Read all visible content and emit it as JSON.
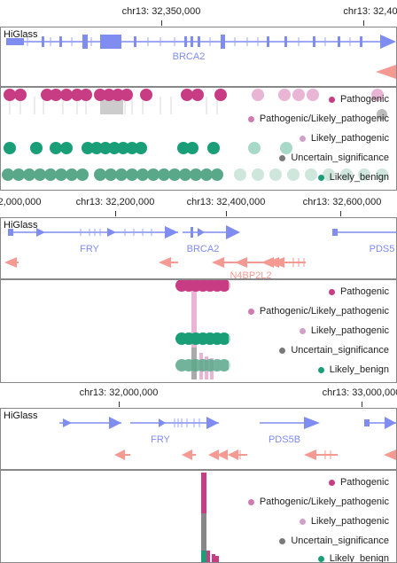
{
  "app_label": "HiGlass",
  "legend_items": [
    {
      "label": "Pathogenic",
      "color": "#c83c84"
    },
    {
      "label": "Pathogenic/Likely_pathogenic",
      "color": "#d07ab0"
    },
    {
      "label": "Likely_pathogenic",
      "color": "#d0a0c8"
    },
    {
      "label": "Uncertain_significance",
      "color": "#7a7a7a"
    },
    {
      "label": "Likely_benign",
      "color": "#1a9e78"
    }
  ],
  "views": [
    {
      "axis_ticks": [
        "chr13: 32,350,000",
        "chr13: 32,40"
      ],
      "genes": [
        "BRCA2"
      ]
    },
    {
      "axis_ticks": [
        "2,000,000",
        "chr13: 32,200,000",
        "chr13: 32,400,000",
        "chr13: 32,600,000"
      ],
      "genes": [
        "FRY",
        "BRCA2",
        "PDS5",
        "N4BP2L2"
      ]
    },
    {
      "axis_ticks": [
        "chr13: 32,000,000",
        "chr13: 33,000,000"
      ],
      "genes": [
        "FRY",
        "PDS5B"
      ]
    }
  ],
  "colors": {
    "gene_plus": "#7f8cf0",
    "gene_minus": "#f59a92",
    "pathogenic": "#c83c84",
    "likely_pathogenic_light": "#e8b6d4",
    "uncertain": "#aaaaaa",
    "likely_benign": "#1a9e78",
    "likely_benign_muted": "#5aa88a"
  }
}
